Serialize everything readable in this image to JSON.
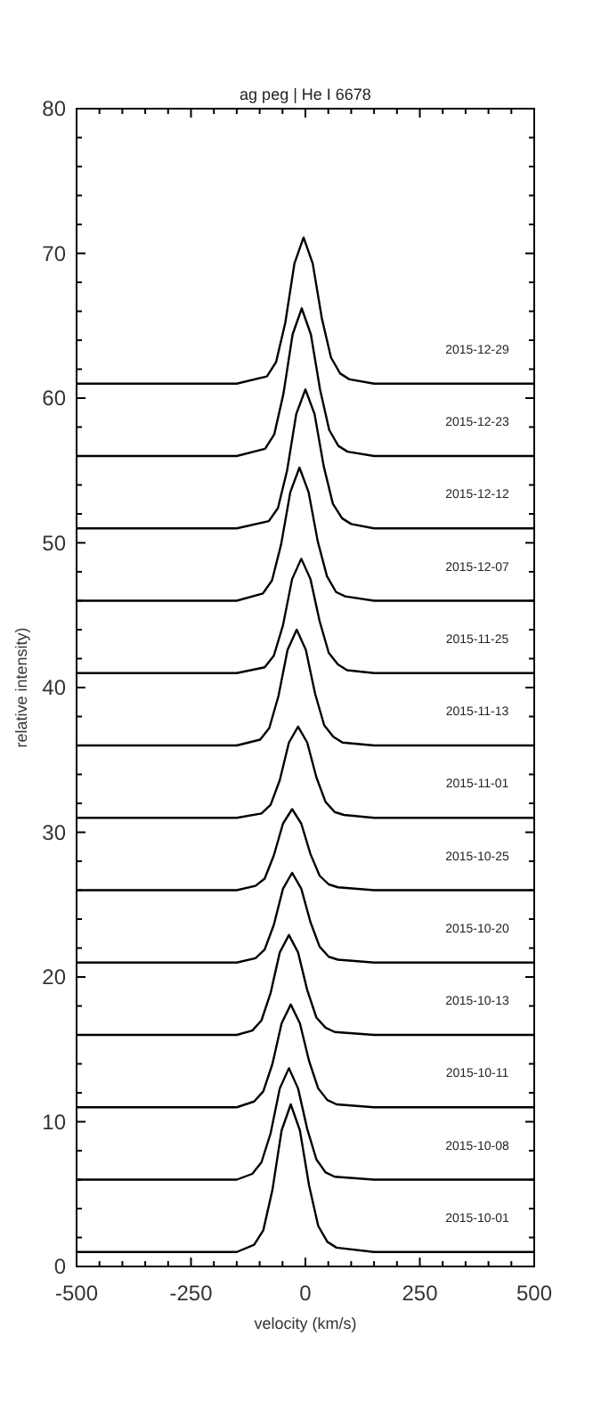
{
  "chart_data": {
    "type": "line",
    "title": "ag peg | He I 6678",
    "xlabel": "velocity (km/s)",
    "ylabel": "relative intensity)",
    "xlim": [
      -500,
      500
    ],
    "ylim": [
      0,
      80
    ],
    "xticks": [
      -500,
      {
        "value": -450,
        "label": null
      },
      {
        "value": -400,
        "label": null
      },
      {
        "value": -350,
        "label": null
      },
      {
        "value": -300,
        "label": null
      },
      -250,
      {
        "value": -200,
        "label": null
      },
      {
        "value": -150,
        "label": null
      },
      {
        "value": -100,
        "label": null
      },
      {
        "value": -50,
        "label": null
      },
      0,
      {
        "value": 50,
        "label": null
      },
      {
        "value": 100,
        "label": null
      },
      {
        "value": 150,
        "label": null
      },
      {
        "value": 200,
        "label": null
      },
      250,
      {
        "value": 300,
        "label": null
      },
      {
        "value": 350,
        "label": null
      },
      {
        "value": 400,
        "label": null
      },
      {
        "value": 450,
        "label": null
      },
      500
    ],
    "yticks": [
      0,
      {
        "value": 2,
        "label": null
      },
      {
        "value": 4,
        "label": null
      },
      {
        "value": 6,
        "label": null
      },
      {
        "value": 8,
        "label": null
      },
      10,
      {
        "value": 12,
        "label": null
      },
      {
        "value": 14,
        "label": null
      },
      {
        "value": 16,
        "label": null
      },
      {
        "value": 18,
        "label": null
      },
      20,
      {
        "value": 22,
        "label": null
      },
      {
        "value": 24,
        "label": null
      },
      {
        "value": 26,
        "label": null
      },
      {
        "value": 28,
        "label": null
      },
      30,
      {
        "value": 32,
        "label": null
      },
      {
        "value": 34,
        "label": null
      },
      {
        "value": 36,
        "label": null
      },
      {
        "value": 38,
        "label": null
      },
      40,
      {
        "value": 42,
        "label": null
      },
      {
        "value": 44,
        "label": null
      },
      {
        "value": 46,
        "label": null
      },
      {
        "value": 48,
        "label": null
      },
      50,
      {
        "value": 52,
        "label": null
      },
      {
        "value": 54,
        "label": null
      },
      {
        "value": 56,
        "label": null
      },
      {
        "value": 58,
        "label": null
      },
      60,
      {
        "value": 62,
        "label": null
      },
      {
        "value": 64,
        "label": null
      },
      {
        "value": 66,
        "label": null
      },
      {
        "value": 68,
        "label": null
      },
      70,
      {
        "value": 72,
        "label": null
      },
      {
        "value": 74,
        "label": null
      },
      {
        "value": 76,
        "label": null
      },
      {
        "value": 78,
        "label": null
      },
      80
    ],
    "grid": false,
    "legend": "right",
    "marker": "none",
    "line_style": "solid",
    "series": [
      {
        "name": "2015-10-01",
        "color": "#000000",
        "x": [
          -500,
          -300,
          -150,
          -112,
          -92,
          -72,
          -52,
          -32,
          -12,
          8,
          28,
          48,
          68,
          150,
          300,
          500
        ],
        "values": [
          1,
          1,
          1,
          1.5,
          2.5,
          5.3,
          9.4,
          11.2,
          9.4,
          5.6,
          2.8,
          1.7,
          1.3,
          1,
          1,
          1
        ]
      },
      {
        "name": "2015-10-08",
        "color": "#000000",
        "x": [
          -500,
          -300,
          -150,
          -116,
          -96,
          -76,
          -56,
          -36,
          -16,
          4,
          24,
          44,
          64,
          150,
          300,
          500
        ],
        "values": [
          6,
          6,
          6,
          6.4,
          7.2,
          9.2,
          12.3,
          13.7,
          12.3,
          9.5,
          7.4,
          6.5,
          6.2,
          6,
          6,
          6
        ]
      },
      {
        "name": "2015-10-11",
        "color": "#000000",
        "x": [
          -500,
          -300,
          -150,
          -112,
          -92,
          -72,
          -52,
          -32,
          -12,
          8,
          28,
          48,
          68,
          150,
          300,
          500
        ],
        "values": [
          11,
          11,
          11,
          11.4,
          12.1,
          14,
          16.8,
          18.1,
          16.8,
          14.2,
          12.3,
          11.5,
          11.2,
          11,
          11,
          11
        ]
      },
      {
        "name": "2015-10-13",
        "color": "#000000",
        "x": [
          -500,
          -300,
          -150,
          -116,
          -96,
          -76,
          -56,
          -36,
          -16,
          4,
          24,
          44,
          64,
          150,
          300,
          500
        ],
        "values": [
          16,
          16,
          16,
          16.3,
          17,
          18.9,
          21.7,
          22.9,
          21.7,
          19.1,
          17.2,
          16.5,
          16.2,
          16,
          16,
          16
        ]
      },
      {
        "name": "2015-10-20",
        "color": "#000000",
        "x": [
          -500,
          -300,
          -150,
          -109,
          -89,
          -69,
          -49,
          -29,
          -9,
          11,
          31,
          51,
          71,
          150,
          300,
          500
        ],
        "values": [
          21,
          21,
          21,
          21.3,
          21.9,
          23.6,
          26.1,
          27.2,
          26.1,
          23.8,
          22.1,
          21.4,
          21.2,
          21,
          21,
          21
        ]
      },
      {
        "name": "2015-10-25",
        "color": "#000000",
        "x": [
          -500,
          -300,
          -150,
          -109,
          -89,
          -69,
          -49,
          -29,
          -9,
          11,
          31,
          51,
          71,
          150,
          300,
          500
        ],
        "values": [
          26,
          26,
          26,
          26.3,
          26.8,
          28.4,
          30.6,
          31.6,
          30.6,
          28.5,
          27,
          26.4,
          26.2,
          26,
          26,
          26
        ]
      },
      {
        "name": "2015-11-01",
        "color": "#000000",
        "x": [
          -500,
          -300,
          -150,
          -96,
          -76,
          -56,
          -36,
          -16,
          4,
          24,
          44,
          64,
          84,
          150,
          300,
          500
        ],
        "values": [
          31,
          31,
          31,
          31.3,
          31.9,
          33.6,
          36.2,
          37.3,
          36.2,
          33.8,
          32.1,
          31.4,
          31.2,
          31,
          31,
          31
        ]
      },
      {
        "name": "2015-11-13",
        "color": "#000000",
        "x": [
          -500,
          -300,
          -150,
          -99,
          -79,
          -59,
          -39,
          -19,
          1,
          21,
          41,
          61,
          81,
          150,
          300,
          500
        ],
        "values": [
          36,
          36,
          36,
          36.4,
          37.2,
          39.4,
          42.6,
          44,
          42.6,
          39.6,
          37.4,
          36.6,
          36.2,
          36,
          36,
          36
        ]
      },
      {
        "name": "2015-11-25",
        "color": "#000000",
        "x": [
          -500,
          -300,
          -150,
          -89,
          -69,
          -49,
          -29,
          -9,
          11,
          31,
          51,
          71,
          91,
          150,
          300,
          500
        ],
        "values": [
          41,
          41,
          41,
          41.4,
          42.2,
          44.3,
          47.5,
          48.9,
          47.5,
          44.6,
          42.4,
          41.6,
          41.2,
          41,
          41,
          41
        ]
      },
      {
        "name": "2015-12-07",
        "color": "#000000",
        "x": [
          -500,
          -300,
          -150,
          -93,
          -73,
          -53,
          -33,
          -13,
          7,
          27,
          47,
          67,
          87,
          150,
          300,
          500
        ],
        "values": [
          46,
          46,
          46,
          46.5,
          47.4,
          49.9,
          53.5,
          55.2,
          53.5,
          50.1,
          47.7,
          46.6,
          46.3,
          46,
          46,
          46
        ]
      },
      {
        "name": "2015-12-12",
        "color": "#000000",
        "x": [
          -500,
          -300,
          -150,
          -80,
          -60,
          -40,
          -20,
          0,
          20,
          40,
          60,
          80,
          100,
          150,
          300,
          500
        ],
        "values": [
          51,
          51,
          51,
          51.5,
          52.4,
          55,
          58.9,
          60.6,
          58.9,
          55.3,
          52.7,
          51.7,
          51.3,
          51,
          51,
          51
        ]
      },
      {
        "name": "2015-12-23",
        "color": "#000000",
        "x": [
          -500,
          -300,
          -150,
          -88,
          -68,
          -48,
          -28,
          -8,
          12,
          32,
          52,
          72,
          92,
          150,
          300,
          500
        ],
        "values": [
          56,
          56,
          56,
          56.5,
          57.5,
          60.3,
          64.4,
          66.2,
          64.4,
          60.6,
          57.8,
          56.7,
          56.3,
          56,
          56,
          56
        ]
      },
      {
        "name": "2015-12-29",
        "color": "#000000",
        "x": [
          -500,
          -300,
          -150,
          -84,
          -64,
          -44,
          -24,
          -4,
          16,
          36,
          56,
          76,
          96,
          150,
          300,
          500
        ],
        "values": [
          61,
          61,
          61,
          61.5,
          62.5,
          65.2,
          69.3,
          71.1,
          69.3,
          65.5,
          62.8,
          61.7,
          61.3,
          61,
          61,
          61
        ]
      }
    ]
  }
}
